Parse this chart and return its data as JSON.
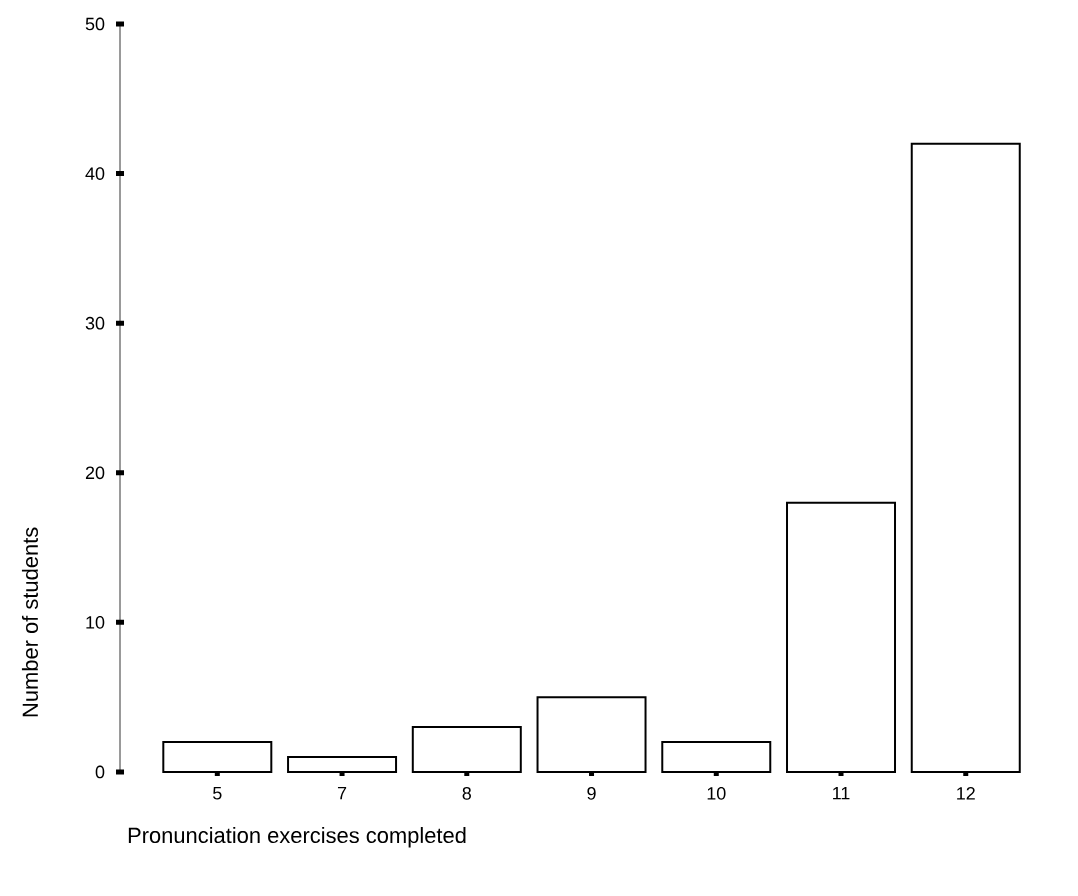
{
  "chart_data": {
    "type": "bar",
    "xlabel": "Pronunciation exercises completed",
    "ylabel": "Number of students",
    "categories": [
      "5",
      "7",
      "8",
      "9",
      "10",
      "11",
      "12"
    ],
    "values": [
      2,
      1,
      3,
      5,
      2,
      18,
      42
    ],
    "color": "#ffffff",
    "ylim": [
      0,
      50
    ],
    "yticks": [
      0,
      10,
      20,
      30,
      40,
      50
    ]
  }
}
